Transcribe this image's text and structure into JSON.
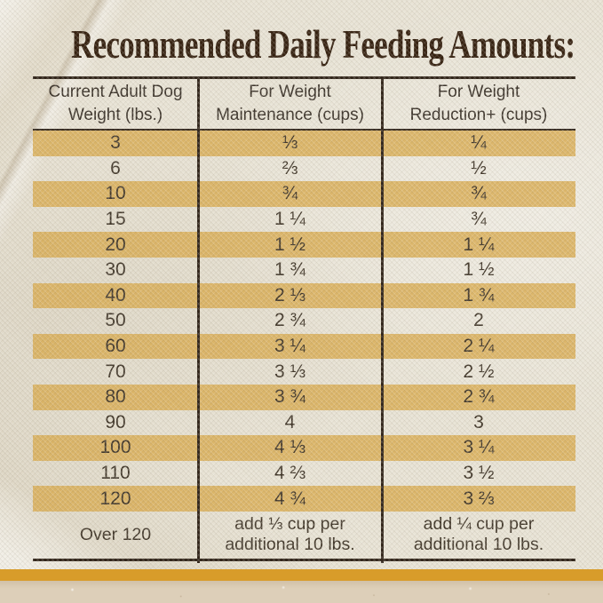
{
  "title": "Recommended Daily Feeding Amounts:",
  "table": {
    "headers": [
      "Current Adult Dog\nWeight (lbs.)",
      "For Weight\nMaintenance (cups)",
      "For Weight\nReduction+ (cups)"
    ],
    "rows": [
      {
        "weight": "3",
        "maintenance": "⅓",
        "reduction": "¼"
      },
      {
        "weight": "6",
        "maintenance": "⅔",
        "reduction": "½"
      },
      {
        "weight": "10",
        "maintenance": "¾",
        "reduction": "¾"
      },
      {
        "weight": "15",
        "maintenance": "1 ¼",
        "reduction": "¾"
      },
      {
        "weight": "20",
        "maintenance": "1 ½",
        "reduction": "1 ¼"
      },
      {
        "weight": "30",
        "maintenance": "1 ¾",
        "reduction": "1 ½"
      },
      {
        "weight": "40",
        "maintenance": "2 ⅓",
        "reduction": "1 ¾"
      },
      {
        "weight": "50",
        "maintenance": "2 ¾",
        "reduction": "2"
      },
      {
        "weight": "60",
        "maintenance": "3 ¼",
        "reduction": "2 ¼"
      },
      {
        "weight": "70",
        "maintenance": "3 ⅓",
        "reduction": "2 ½"
      },
      {
        "weight": "80",
        "maintenance": "3 ¾",
        "reduction": "2 ¾"
      },
      {
        "weight": "90",
        "maintenance": "4",
        "reduction": "3"
      },
      {
        "weight": "100",
        "maintenance": "4 ⅓",
        "reduction": "3 ¼"
      },
      {
        "weight": "110",
        "maintenance": "4 ⅔",
        "reduction": "3 ½"
      },
      {
        "weight": "120",
        "maintenance": "4 ¾",
        "reduction": "3 ⅔"
      }
    ],
    "footer_row": {
      "weight": "Over 120",
      "maintenance": "add ⅓ cup per\nadditional 10 lbs.",
      "reduction": "add ¼ cup per\nadditional 10 lbs."
    }
  },
  "chart_data": {
    "type": "table",
    "title": "Recommended Daily Feeding Amounts",
    "columns": [
      "Current Adult Dog Weight (lbs.)",
      "For Weight Maintenance (cups)",
      "For Weight Reduction+ (cups)"
    ],
    "rows": [
      [
        "3",
        "1/3",
        "1/4"
      ],
      [
        "6",
        "2/3",
        "1/2"
      ],
      [
        "10",
        "3/4",
        "3/4"
      ],
      [
        "15",
        "1 1/4",
        "3/4"
      ],
      [
        "20",
        "1 1/2",
        "1 1/4"
      ],
      [
        "30",
        "1 3/4",
        "1 1/2"
      ],
      [
        "40",
        "2 1/3",
        "1 3/4"
      ],
      [
        "50",
        "2 3/4",
        "2"
      ],
      [
        "60",
        "3 1/4",
        "2 1/4"
      ],
      [
        "70",
        "3 1/3",
        "2 1/2"
      ],
      [
        "80",
        "3 3/4",
        "2 3/4"
      ],
      [
        "90",
        "4",
        "3"
      ],
      [
        "100",
        "4 1/3",
        "3 1/4"
      ],
      [
        "110",
        "4 2/3",
        "3 1/2"
      ],
      [
        "120",
        "4 3/4",
        "3 2/3"
      ],
      [
        "Over 120",
        "add 1/3 cup per additional 10 lbs.",
        "add 1/4 cup per additional 10 lbs."
      ]
    ]
  },
  "colors": {
    "fabric_background": "#e8e3d5",
    "stripe_gold": "#ddb166",
    "title_text": "#34200f",
    "table_lines": "#31251a",
    "body_text": "#41372a",
    "bottom_band_gold": "#d89c2a",
    "countertop": "#ddcfb9"
  }
}
